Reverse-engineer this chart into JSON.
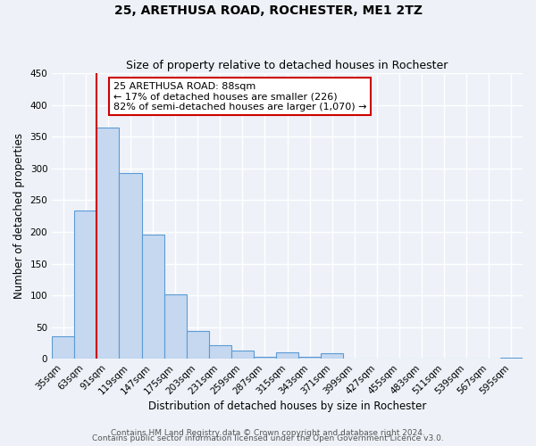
{
  "title": "25, ARETHUSA ROAD, ROCHESTER, ME1 2TZ",
  "subtitle": "Size of property relative to detached houses in Rochester",
  "xlabel": "Distribution of detached houses by size in Rochester",
  "ylabel": "Number of detached properties",
  "bin_labels": [
    "35sqm",
    "63sqm",
    "91sqm",
    "119sqm",
    "147sqm",
    "175sqm",
    "203sqm",
    "231sqm",
    "259sqm",
    "287sqm",
    "315sqm",
    "343sqm",
    "371sqm",
    "399sqm",
    "427sqm",
    "455sqm",
    "483sqm",
    "511sqm",
    "539sqm",
    "567sqm",
    "595sqm"
  ],
  "bar_values": [
    35,
    234,
    364,
    293,
    196,
    102,
    44,
    21,
    13,
    3,
    10,
    3,
    9,
    0,
    0,
    0,
    0,
    0,
    0,
    0,
    2
  ],
  "bar_color": "#c5d8f0",
  "bar_edge_color": "#5b9bd5",
  "bar_edge_width": 0.8,
  "vline_color": "#cc0000",
  "vline_position": 2,
  "annotation_box_text": "25 ARETHUSA ROAD: 88sqm\n← 17% of detached houses are smaller (226)\n82% of semi-detached houses are larger (1,070) →",
  "annotation_box_facecolor": "white",
  "annotation_box_edgecolor": "#cc0000",
  "ylim": [
    0,
    450
  ],
  "yticks": [
    0,
    50,
    100,
    150,
    200,
    250,
    300,
    350,
    400,
    450
  ],
  "footer_line1": "Contains HM Land Registry data © Crown copyright and database right 2024.",
  "footer_line2": "Contains public sector information licensed under the Open Government Licence v3.0.",
  "background_color": "#eef2f8",
  "grid_color": "#ffffff",
  "title_fontsize": 10,
  "subtitle_fontsize": 9,
  "axis_label_fontsize": 8.5,
  "tick_fontsize": 7.5,
  "annotation_fontsize": 8,
  "footer_fontsize": 6.5
}
